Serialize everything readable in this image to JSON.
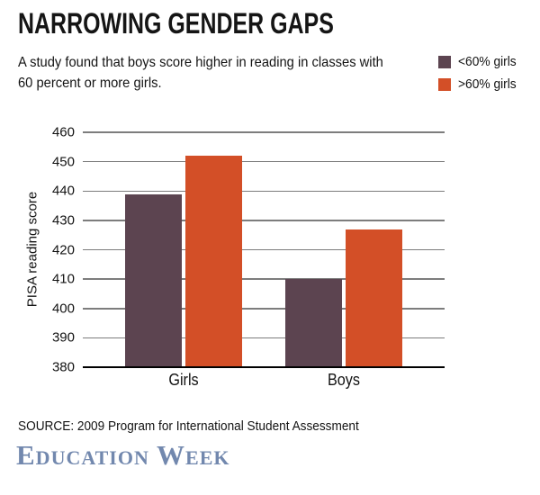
{
  "header": {
    "title": "NARROWING GENDER GAPS",
    "subtitle": "A study found that boys score higher in reading in classes with 60 percent or more girls.",
    "subtitle_lines": [
      "A study found that boys score higher in reading in classes with",
      "60 percent or more girls."
    ]
  },
  "chart_data": {
    "type": "bar",
    "categories": [
      "Girls",
      "Boys"
    ],
    "series": [
      {
        "name": "<60% girls",
        "color": "#5c4450",
        "values": [
          439,
          410
        ]
      },
      {
        "name": ">60% girls",
        "color": "#d34f27",
        "values": [
          452,
          427
        ]
      }
    ],
    "title": "NARROWING GENDER GAPS",
    "xlabel": "",
    "ylabel": "PISA reading score",
    "ylim": [
      380,
      460
    ],
    "ytick_step": 10,
    "grid": true,
    "legend_position": "top-right",
    "baseline_color": "#000000",
    "gridline_color": "#7d7d7d"
  },
  "footer": {
    "source": "SOURCE: 2009 Program for International Student Assessment",
    "logo": "Education Week",
    "logo_color": "#7288ae"
  }
}
